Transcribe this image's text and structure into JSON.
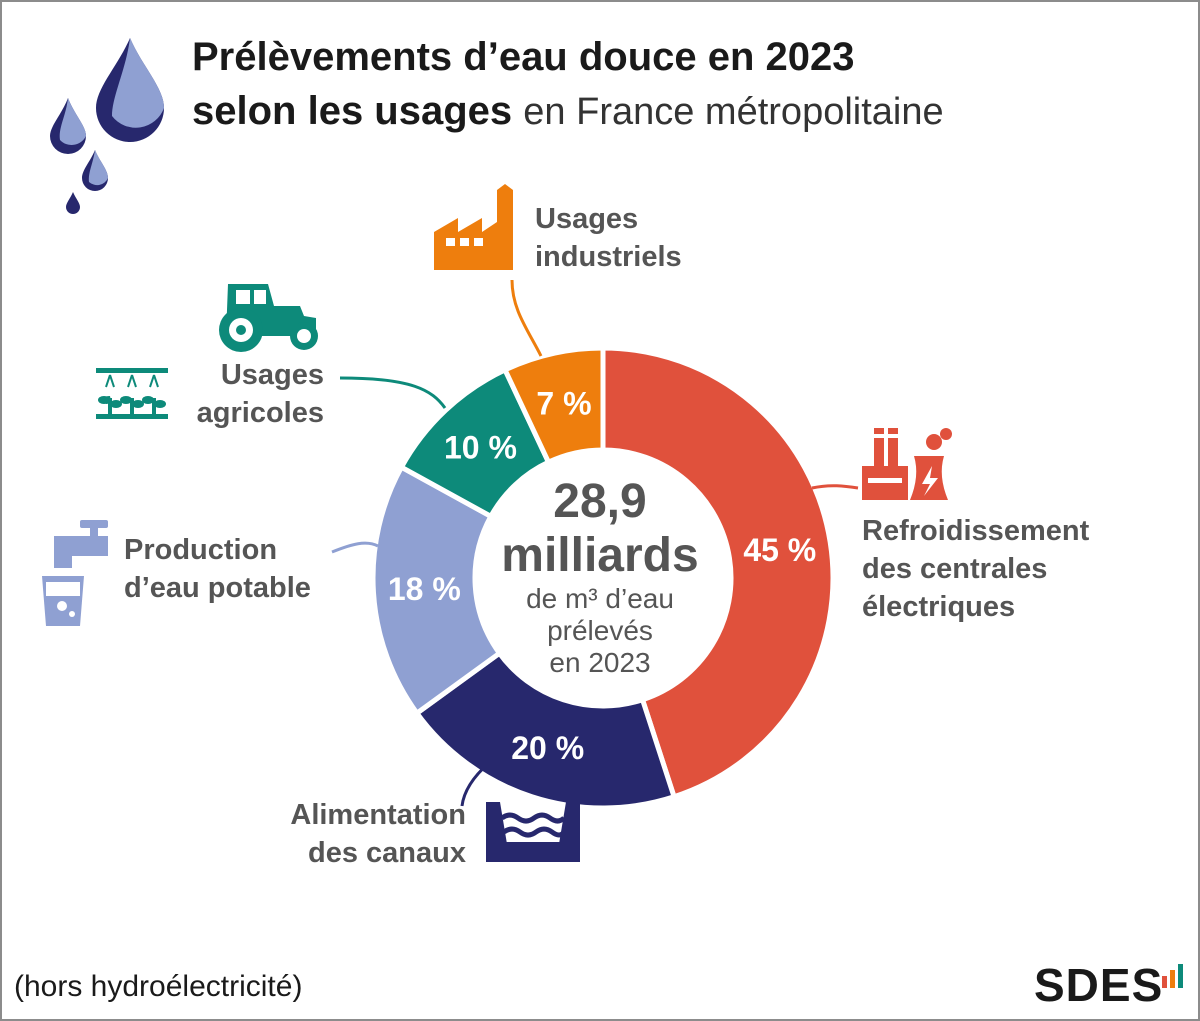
{
  "title": {
    "line1": "Prélèvements d’eau douce en 2023",
    "line2_bold": "selon les usages",
    "line2_light": "en France métropolitaine"
  },
  "center": {
    "value": "28,9",
    "unit": "milliards",
    "caption_line1": "de m³ d’eau",
    "caption_line2": "prélevés",
    "caption_line3": "en 2023"
  },
  "chart_data": {
    "type": "pie",
    "donut": true,
    "total": "28,9 milliards de m³ d’eau prélevés en 2023",
    "categories": [
      "Refroidissement des centrales électriques",
      "Alimentation des canaux",
      "Production d’eau potable",
      "Usages agricoles",
      "Usages industriels"
    ],
    "values": [
      45,
      20,
      18,
      10,
      7
    ],
    "value_labels": [
      "45 %",
      "20 %",
      "18 %",
      "10 %",
      "7 %"
    ],
    "colors": [
      "#e0513c",
      "#27286d",
      "#8fa0d2",
      "#0d8a7a",
      "#ee7e0d"
    ]
  },
  "labels": {
    "refroidissement": [
      "Refroidissement",
      "des centrales",
      "électriques"
    ],
    "canaux": [
      "Alimentation",
      "des canaux"
    ],
    "potable": [
      "Production",
      "d’eau potable"
    ],
    "agricoles": [
      "Usages",
      "agricoles"
    ],
    "industriels": [
      "Usages",
      "industriels"
    ]
  },
  "icons": [
    "water-drops-icon",
    "factory-icon",
    "tractor-icon",
    "irrigation-icon",
    "tap-icon",
    "glass-icon",
    "power-plant-icon",
    "canal-icon"
  ],
  "footnote": "(hors hydroélectricité)",
  "logo": "SDES"
}
